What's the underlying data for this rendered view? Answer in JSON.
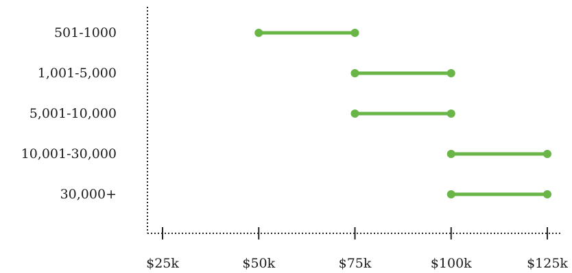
{
  "chart_data": {
    "type": "dumbbell",
    "orientation": "horizontal",
    "categories": [
      "501-1000",
      "1,001-5,000",
      "5,001-10,000",
      "10,001-30,000",
      "30,000+"
    ],
    "series": [
      {
        "ranges": [
          [
            50000,
            75000
          ],
          [
            75000,
            100000
          ],
          [
            75000,
            100000
          ],
          [
            100000,
            125000
          ],
          [
            100000,
            125000
          ]
        ]
      }
    ],
    "x_ticks": [
      25000,
      50000,
      75000,
      100000,
      125000
    ],
    "x_tick_labels": [
      "$25k",
      "$50k",
      "$75k",
      "$100k",
      "$125k"
    ],
    "xlim": [
      25000,
      125000
    ],
    "grid": false,
    "axis_style": "dotted",
    "color": "#6ab547",
    "title": "",
    "xlabel": "",
    "ylabel": ""
  }
}
